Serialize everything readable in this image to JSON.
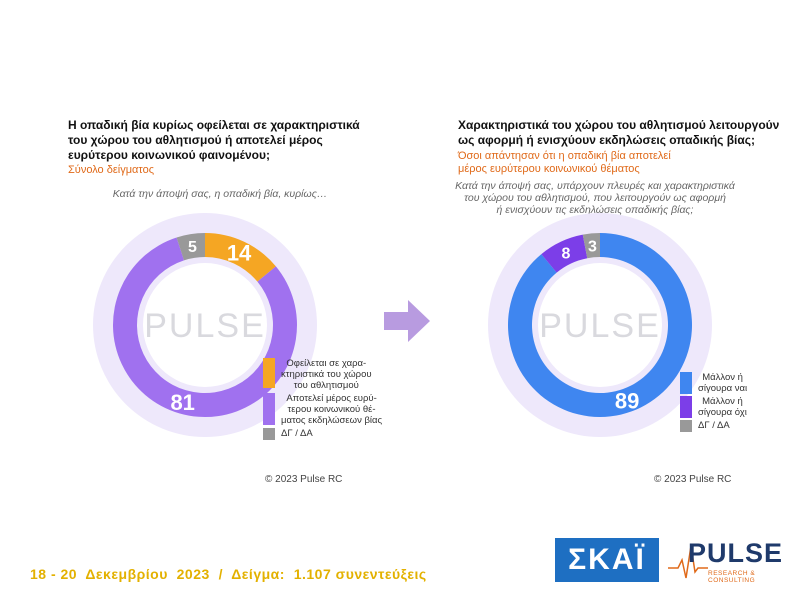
{
  "left_panel": {
    "title_lines": [
      "Η οπαδική βία κυρίως οφείλεται σε χαρακτηριστικά",
      "του χώρου του αθλητισμού ή αποτελεί μέρος",
      "ευρύτερου κοινωνικού φαινομένου;"
    ],
    "subtitle": "Σύνολο δείγματος",
    "question": "Κατά την άποψή σας, η οπαδική βία, κυρίως…",
    "copyright": "© 2023 Pulse RC"
  },
  "right_panel": {
    "title_lines": [
      "Χαρακτηριστικά του χώρου του αθλητισμού λειτουργούν",
      "ως αφορμή ή ενισχύουν εκδηλώσεις οπαδικής βίας;"
    ],
    "subtitle_lines": [
      "Όσοι απάντησαν ότι η οπαδική βία αποτελεί",
      "μέρος ευρύτερου κοινωνικού θέματος"
    ],
    "question_lines": [
      "Κατά την άποψή σας, υπάρχουν πλευρές και χαρακτηριστικά",
      "του χώρου του αθλητισμού, που λειτουργούν ως αφορμή",
      "ή ενισχύουν τις εκδηλώσεις οπαδικής βίας;"
    ],
    "copyright": "© 2023 Pulse RC"
  },
  "footer": {
    "text": "18 - 20  Δεκεμβρίου  2023  /  Δείγμα:  1.107 συνεντεύξεις"
  },
  "logos": {
    "skai": "ΣΚΑΪ",
    "pulse": "PULSE",
    "pulse_sub": "RESEARCH & CONSULTING"
  },
  "chart_data": [
    {
      "type": "pie",
      "donut": true,
      "start": "top",
      "categories": [
        "Οφείλεται σε χαρα-\nκτηριστικά του χώρου\nτου αθλητισμού",
        "Αποτελεί μέρος ευρύ-\nτερου κοινωνικού θέ-\nματος εκδηλώσεων βίας",
        "ΔΓ / ΔΑ"
      ],
      "values": [
        14,
        81,
        5
      ],
      "colors": [
        "#f5a623",
        "#a071ef",
        "#999999"
      ],
      "order_clockwise": [
        0,
        1,
        2
      ],
      "legend": "right-bottom",
      "watermark": "PULSE"
    },
    {
      "type": "pie",
      "donut": true,
      "start": "top",
      "categories": [
        "Μάλλον ή\nσίγουρα ναι",
        "Μάλλον ή\nσίγουρα όχι",
        "ΔΓ / ΔΑ"
      ],
      "values": [
        89,
        8,
        3
      ],
      "colors": [
        "#3f86f0",
        "#7c3ee8",
        "#999999"
      ],
      "order_clockwise": [
        0,
        1,
        2
      ],
      "legend": "right-bottom",
      "watermark": "PULSE"
    }
  ]
}
